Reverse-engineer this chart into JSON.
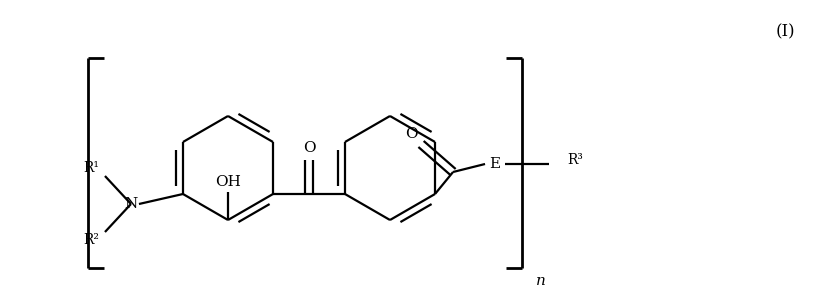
{
  "title_label": "(I)",
  "label_OH": "OH",
  "label_O_ketone": "O",
  "label_O_ester": "O",
  "label_E": "E",
  "label_R1": "R¹",
  "label_R2": "R²",
  "label_R3": "R³",
  "label_N": "N",
  "label_n": "n",
  "line_color": "#000000",
  "bg_color": "#ffffff",
  "lw": 1.6,
  "lw_bracket": 2.0
}
